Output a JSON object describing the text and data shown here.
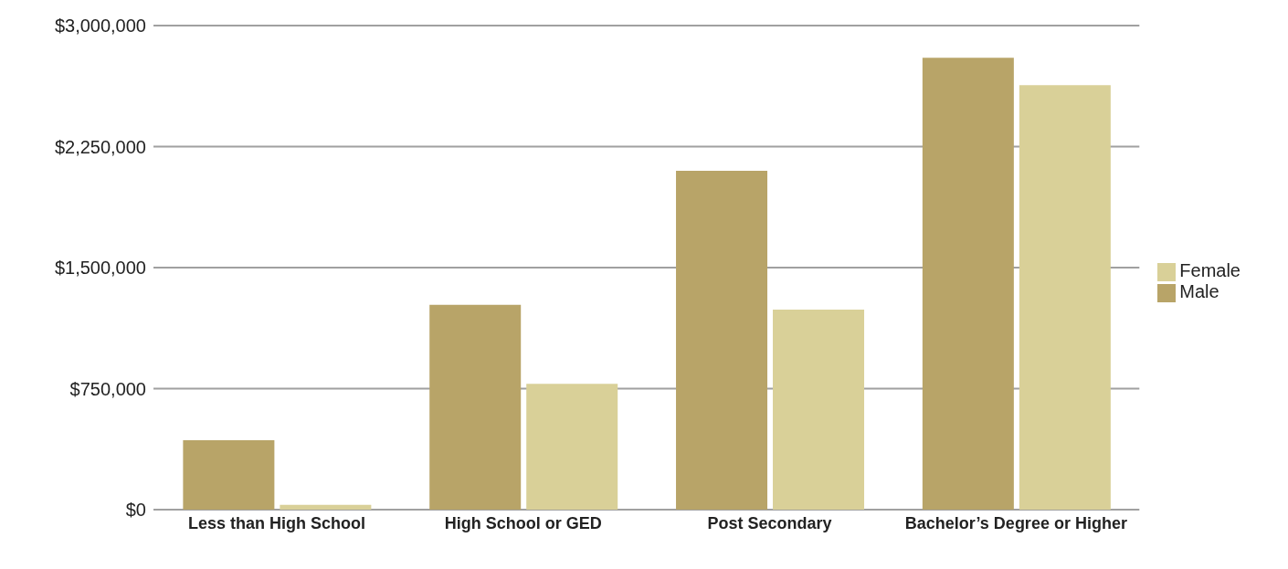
{
  "chart_data": {
    "type": "bar",
    "categories": [
      "Less than High School",
      "High School or GED",
      "Post Secondary",
      "Bachelor’s Degree or Higher"
    ],
    "series": [
      {
        "name": "Male",
        "color": "#b8a468",
        "values": [
          430000,
          1270000,
          2100000,
          2800000
        ]
      },
      {
        "name": "Female",
        "color": "#d9d098",
        "values": [
          30000,
          780000,
          1240000,
          2630000
        ]
      }
    ],
    "ylim": [
      0,
      3000000
    ],
    "yticks": [
      {
        "value": 0,
        "label": "$0"
      },
      {
        "value": 750000,
        "label": "$750,000"
      },
      {
        "value": 1500000,
        "label": "$1,500,000"
      },
      {
        "value": 2250000,
        "label": "$2,250,000"
      },
      {
        "value": 3000000,
        "label": "$3,000,000"
      }
    ],
    "grid": "y",
    "legend": "right"
  }
}
